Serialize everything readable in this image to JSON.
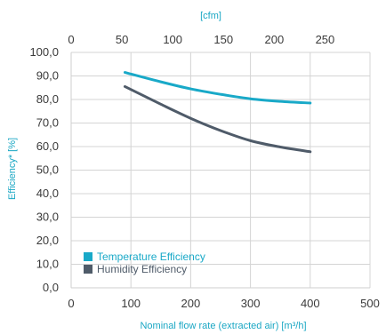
{
  "chart_data": {
    "type": "line",
    "xlabel": "Nominal flow rate (extracted air) [m³/h]",
    "ylabel": "Efficiency* [%]",
    "x2label": "[cfm]",
    "xlim": [
      0,
      500
    ],
    "ylim": [
      0,
      100
    ],
    "x_ticks": [
      "0",
      "100",
      "200",
      "300",
      "400",
      "500"
    ],
    "y_ticks": [
      "0,0",
      "10,0",
      "20,0",
      "30,0",
      "40,0",
      "50,0",
      "60,0",
      "70,0",
      "80,0",
      "90,0",
      "100,0"
    ],
    "x2_ticks": [
      "0",
      "50",
      "100",
      "150",
      "200",
      "250"
    ],
    "grid": true,
    "legend_position": "bottom-left",
    "series": [
      {
        "name": "Temperature Efficiency",
        "color": "#19a9c8",
        "x": [
          90,
          150,
          200,
          250,
          300,
          350,
          400
        ],
        "y": [
          91.5,
          87.5,
          84.5,
          82.2,
          80.3,
          79.2,
          78.5
        ]
      },
      {
        "name": "Humidity Efficiency",
        "color": "#4f5b69",
        "x": [
          90,
          150,
          200,
          250,
          300,
          350,
          400
        ],
        "y": [
          85.5,
          78,
          72,
          66.8,
          62.5,
          59.8,
          57.8
        ]
      }
    ]
  }
}
